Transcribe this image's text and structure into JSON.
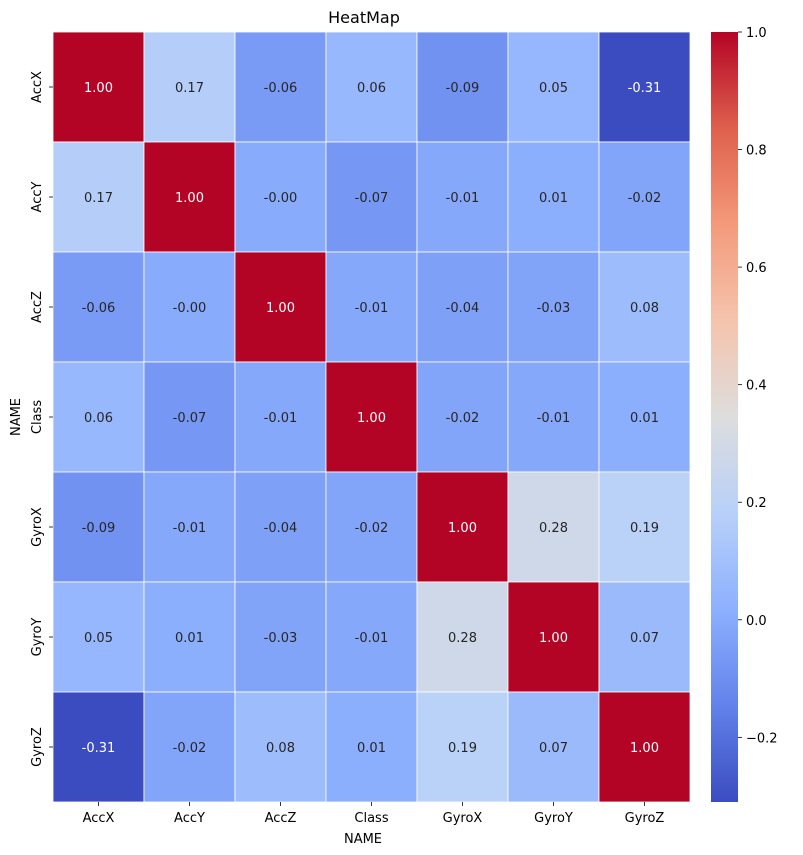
{
  "chart_data": {
    "type": "heatmap",
    "title": "HeatMap",
    "xlabel": "NAME",
    "ylabel": "NAME",
    "x_categories": [
      "AccX",
      "AccY",
      "AccZ",
      "Class",
      "GyroX",
      "GyroY",
      "GyroZ"
    ],
    "y_categories": [
      "AccX",
      "AccY",
      "AccZ",
      "Class",
      "GyroX",
      "GyroY",
      "GyroZ"
    ],
    "values": [
      [
        1.0,
        0.17,
        -0.06,
        0.06,
        -0.09,
        0.05,
        -0.31
      ],
      [
        0.17,
        1.0,
        -0.0,
        -0.07,
        -0.01,
        0.01,
        -0.02
      ],
      [
        -0.06,
        -0.0,
        1.0,
        -0.01,
        -0.04,
        -0.03,
        0.08
      ],
      [
        0.06,
        -0.07,
        -0.01,
        1.0,
        -0.02,
        -0.01,
        0.01
      ],
      [
        -0.09,
        -0.01,
        -0.04,
        -0.02,
        1.0,
        0.28,
        0.19
      ],
      [
        0.05,
        0.01,
        -0.03,
        -0.01,
        0.28,
        1.0,
        0.07
      ],
      [
        -0.31,
        -0.02,
        0.08,
        0.01,
        0.19,
        0.07,
        1.0
      ]
    ],
    "value_labels": [
      [
        "1.00",
        "0.17",
        "-0.06",
        "0.06",
        "-0.09",
        "0.05",
        "-0.31"
      ],
      [
        "0.17",
        "1.00",
        "-0.00",
        "-0.07",
        "-0.01",
        "0.01",
        "-0.02"
      ],
      [
        "-0.06",
        "-0.00",
        "1.00",
        "-0.01",
        "-0.04",
        "-0.03",
        "0.08"
      ],
      [
        "0.06",
        "-0.07",
        "-0.01",
        "1.00",
        "-0.02",
        "-0.01",
        "0.01"
      ],
      [
        "-0.09",
        "-0.01",
        "-0.04",
        "-0.02",
        "1.00",
        "0.28",
        "0.19"
      ],
      [
        "0.05",
        "0.01",
        "-0.03",
        "-0.01",
        "0.28",
        "1.00",
        "0.07"
      ],
      [
        "-0.31",
        "-0.02",
        "0.08",
        "0.01",
        "0.19",
        "0.07",
        "1.00"
      ]
    ],
    "colormap": "coolwarm",
    "vmin": -0.31,
    "vmax": 1.0,
    "colorbar_ticks": [
      1.0,
      0.8,
      0.6,
      0.4,
      0.2,
      0.0,
      -0.2
    ],
    "colorbar_tick_labels": [
      "1.0",
      "0.8",
      "0.6",
      "0.4",
      "0.2",
      "0.0",
      "−0.2"
    ],
    "grid": false,
    "legend": "colorbar-right"
  }
}
